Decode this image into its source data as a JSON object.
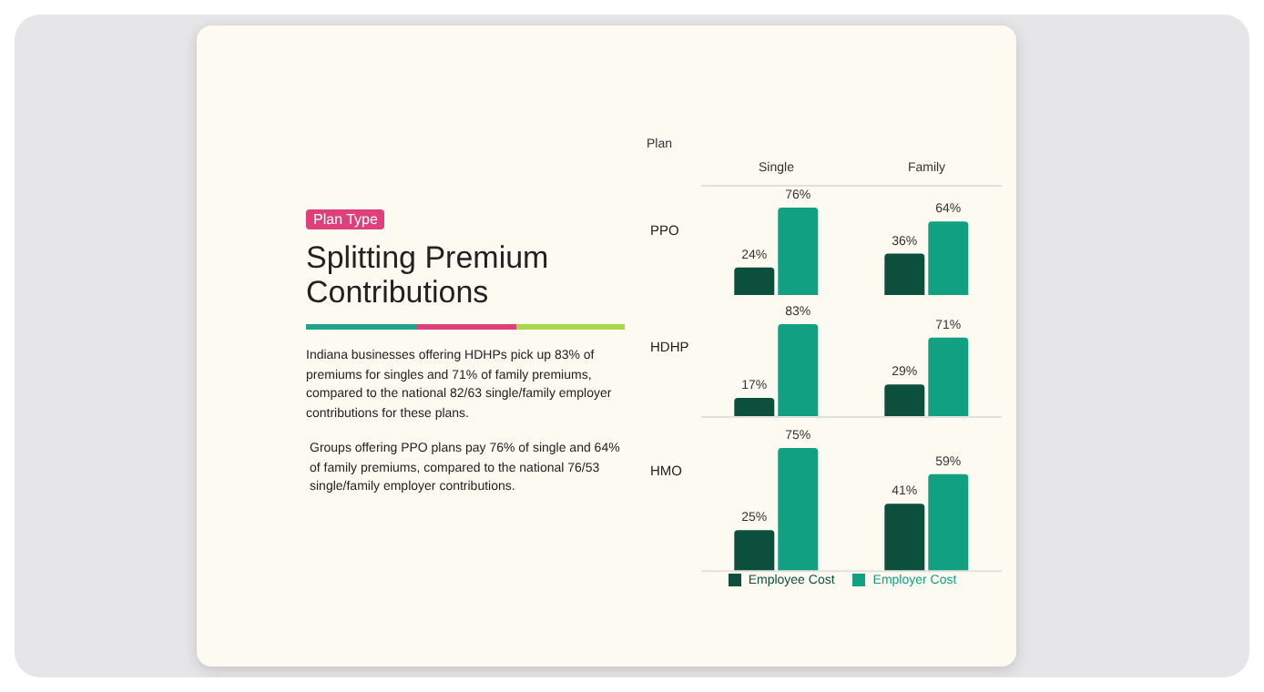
{
  "chart_data": [
    {
      "type": "other",
      "subtitle": "Plan Type",
      "title": "Splitting Premium Contributions",
      "annotations": [
        "Indiana businesses offering HDHPs pick up 83% of premiums for singles and 71% of family premiums, compared to the national 82/63 single/family employer contributions for these plans.",
        "Groups offering PPO plans pay 76% of single and 64% of family premiums, compared to the national 76/53 single/family employer contributions."
      ]
    },
    {
      "type": "bar",
      "title": "PPO",
      "annotations": [
        "Plan"
      ],
      "categories": [
        "Single",
        "Family"
      ],
      "tick_labels": "x",
      "series": [
        {
          "color": "#0b4f3c",
          "values": [
            24,
            36
          ],
          "value_labels": [
            "24%",
            "36%"
          ]
        },
        {
          "color": "#12a083",
          "values": [
            76,
            64
          ],
          "value_labels": [
            "76%",
            "64%"
          ]
        }
      ]
    },
    {
      "type": "bar",
      "title": "HDHP",
      "categories": [
        null,
        null
      ],
      "tick_labels": false,
      "series": [
        {
          "color": "#0b4f3c",
          "values": [
            17,
            29
          ],
          "value_labels": [
            "17%",
            "29%"
          ]
        },
        {
          "color": "#12a083",
          "values": [
            83,
            71
          ],
          "value_labels": [
            "83%",
            "71%"
          ]
        }
      ]
    },
    {
      "type": "bar",
      "title": "HMO",
      "categories": [
        null,
        null
      ],
      "tick_labels": false,
      "legend": "bottom",
      "series": [
        {
          "name": "Employee Cost",
          "color": "#0b4f3c",
          "values": [
            25,
            41
          ],
          "value_labels": [
            "25%",
            "41%"
          ]
        },
        {
          "name": "Employer Cost",
          "color": "#12a083",
          "values": [
            75,
            59
          ],
          "value_labels": [
            "75%",
            "59%"
          ]
        }
      ]
    }
  ]
}
